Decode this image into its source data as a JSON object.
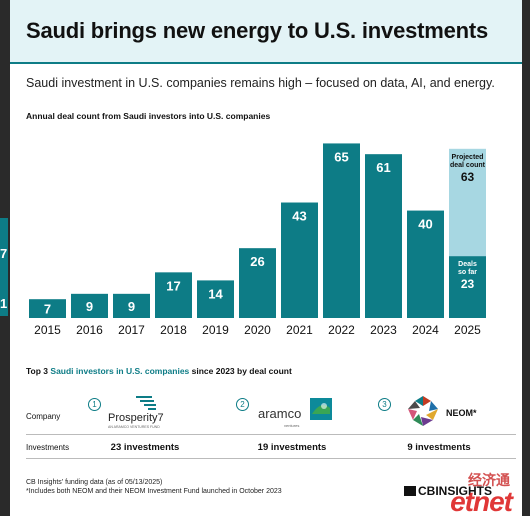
{
  "title": "Saudi brings new energy to U.S. investments",
  "subtitle": "Saudi investment in U.S. companies remains high – focused on data, AI, and energy.",
  "chart_data": {
    "type": "bar",
    "title": "Annual deal count from Saudi investors into U.S. companies",
    "categories": [
      "2015",
      "2016",
      "2017",
      "2018",
      "2019",
      "2020",
      "2021",
      "2022",
      "2023",
      "2024",
      "2025"
    ],
    "values": [
      7,
      9,
      9,
      17,
      14,
      26,
      43,
      65,
      61,
      40,
      23
    ],
    "projected": {
      "category": "2025",
      "label_line1": "Projected",
      "label_line2": "deal count",
      "value": 63
    },
    "so_far": {
      "label_line1": "Deals",
      "label_line2": "so far"
    },
    "colors": {
      "bar": "#0d7c86",
      "projected": "#a7d7e2"
    },
    "ylim": [
      0,
      70
    ]
  },
  "top3": {
    "heading_prefix": "Top 3 ",
    "heading_highlight": "Saudi investors in U.S. companies",
    "heading_suffix": " since 2023 by deal count",
    "row_company": "Company",
    "row_investments": "Investments",
    "investors": [
      {
        "rank": "1",
        "logo_text": "Prosperity7",
        "logo_sub": "AN ARAMCO VENTURES FUND",
        "investments": "23 investments"
      },
      {
        "rank": "2",
        "logo_text": "aramco",
        "logo_sub": "ventures",
        "investments": "19 investments"
      },
      {
        "rank": "3",
        "logo_text": "NEOM*",
        "investments": "9 investments"
      }
    ]
  },
  "footer": {
    "line1": "CB Insights' funding data (as of 05/13/2025)",
    "line2": "*Includes both NEOM and their NEOM Investment Fund launched in October 2023",
    "brand": "CBINSIGHTS"
  },
  "watermark": {
    "line1": "经济通",
    "line2": "etnet"
  },
  "edge_glyphs": [
    "7",
    "1"
  ]
}
